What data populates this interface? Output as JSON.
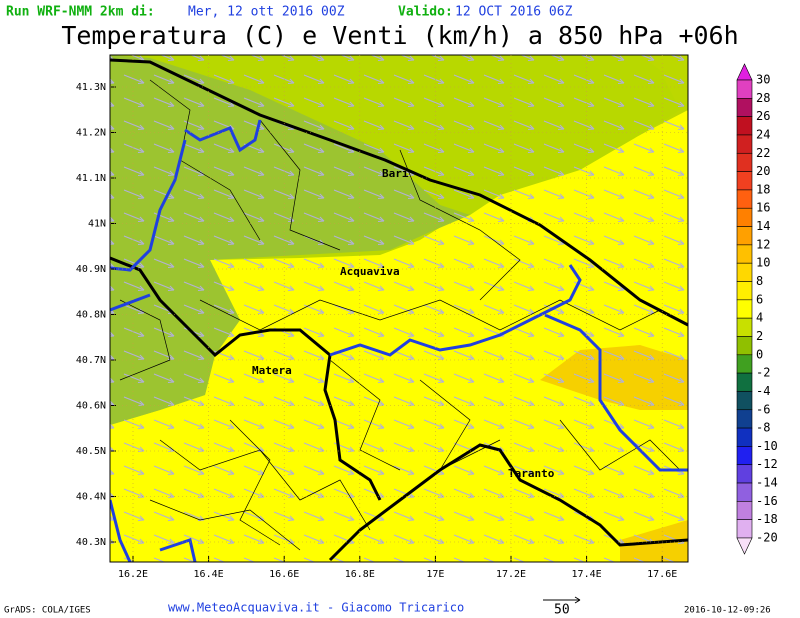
{
  "header": {
    "run_label": "Run WRF-NMM 2km di:",
    "run_date": "Mer, 12 ott 2016 00Z",
    "valid_label": "Valido:",
    "valid_date": "12 OCT 2016 06Z",
    "title": "Temperatura (C) e Venti (km/h) a 850 hPa +06h"
  },
  "map": {
    "lat_labels": [
      "41.3N",
      "41.2N",
      "41.1N",
      "41N",
      "40.9N",
      "40.8N",
      "40.7N",
      "40.6N",
      "40.5N",
      "40.4N",
      "40.3N"
    ],
    "lon_labels": [
      "16.2E",
      "16.4E",
      "16.6E",
      "16.8E",
      "17E",
      "17.2E",
      "17.4E",
      "17.6E"
    ],
    "cities": [
      "Bari",
      "Acquaviva",
      "Matera",
      "Taranto"
    ]
  },
  "colorbar": {
    "labels": [
      "30",
      "28",
      "26",
      "24",
      "22",
      "20",
      "18",
      "16",
      "14",
      "12",
      "10",
      "8",
      "6",
      "4",
      "2",
      "0",
      "-2",
      "-4",
      "-6",
      "-8",
      "-10",
      "-12",
      "-14",
      "-16",
      "-18",
      "-20"
    ],
    "colors": [
      "#e020e0",
      "#e040c0",
      "#b01060",
      "#c01020",
      "#d02020",
      "#e03020",
      "#f04020",
      "#ff6010",
      "#ff8000",
      "#ffa000",
      "#ffc000",
      "#ffd800",
      "#ffee00",
      "#ffff00",
      "#c8e000",
      "#90c000",
      "#40a020",
      "#107040",
      "#105060",
      "#104090",
      "#1030c0",
      "#2020f0",
      "#6040e0",
      "#9060e0",
      "#c080e0",
      "#e0b0f0",
      "#f8e0f8"
    ]
  },
  "footer": {
    "credit": "GrADS: COLA/IGES",
    "site": "www.MeteoAcquaviva.it - Giacomo Tricarico",
    "vector_scale": "50",
    "timestamp": "2016-10-12-09:26"
  }
}
